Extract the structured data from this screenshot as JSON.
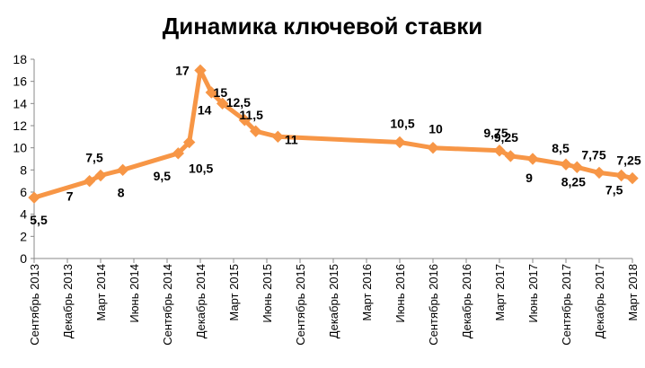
{
  "chart_data": {
    "type": "line",
    "title": "Динамика ключевой ставки",
    "xlabel": "",
    "ylabel": "",
    "ylim": [
      0,
      18
    ],
    "yticks": [
      0,
      2,
      4,
      6,
      8,
      10,
      12,
      14,
      16,
      18
    ],
    "grid": false,
    "legend": "none",
    "line_color": "#F79646",
    "x_tick_labels": [
      "Сентябрь 2013",
      "Декабрь 2013",
      "Март 2014",
      "Июнь 2014",
      "Сентябрь 2014",
      "Декабрь 2014",
      "Март 2015",
      "Июнь 2015",
      "Сентябрь 2015",
      "Декабрь 2015",
      "Март 2016",
      "Июнь 2016",
      "Сентябрь 2016",
      "Декабрь 2016",
      "Март 2017",
      "Июнь 2017",
      "Сентябрь 2017",
      "Декабрь 2017",
      "Март 2018"
    ],
    "series": [
      {
        "values": [
          {
            "x": "2013-09",
            "y": 5.5,
            "label": "5,5"
          },
          {
            "x": "2014-02",
            "y": 7,
            "label": "7"
          },
          {
            "x": "2014-03",
            "y": 7.5,
            "label": "7,5"
          },
          {
            "x": "2014-05",
            "y": 8,
            "label": "8"
          },
          {
            "x": "2014-10",
            "y": 9.5,
            "label": "9,5"
          },
          {
            "x": "2014-11",
            "y": 10.5,
            "label": "10,5"
          },
          {
            "x": "2014-12",
            "y": 17,
            "label": "17"
          },
          {
            "x": "2015-01",
            "y": 15,
            "label": "15"
          },
          {
            "x": "2015-02",
            "y": 14,
            "label": "14"
          },
          {
            "x": "2015-04",
            "y": 12.5,
            "label": "12,5"
          },
          {
            "x": "2015-05",
            "y": 11.5,
            "label": "11,5"
          },
          {
            "x": "2015-07",
            "y": 11,
            "label": "11"
          },
          {
            "x": "2016-06",
            "y": 10.5,
            "label": "10,5"
          },
          {
            "x": "2016-09",
            "y": 10,
            "label": "10"
          },
          {
            "x": "2017-03",
            "y": 9.75,
            "label": "9,75"
          },
          {
            "x": "2017-04",
            "y": 9.25,
            "label": "9,25"
          },
          {
            "x": "2017-06",
            "y": 9,
            "label": "9"
          },
          {
            "x": "2017-09",
            "y": 8.5,
            "label": "8,5"
          },
          {
            "x": "2017-10",
            "y": 8.25,
            "label": "8,25"
          },
          {
            "x": "2017-12",
            "y": 7.75,
            "label": "7,75"
          },
          {
            "x": "2018-02",
            "y": 7.5,
            "label": "7,5"
          },
          {
            "x": "2018-03",
            "y": 7.25,
            "label": "7,25"
          }
        ]
      }
    ]
  }
}
